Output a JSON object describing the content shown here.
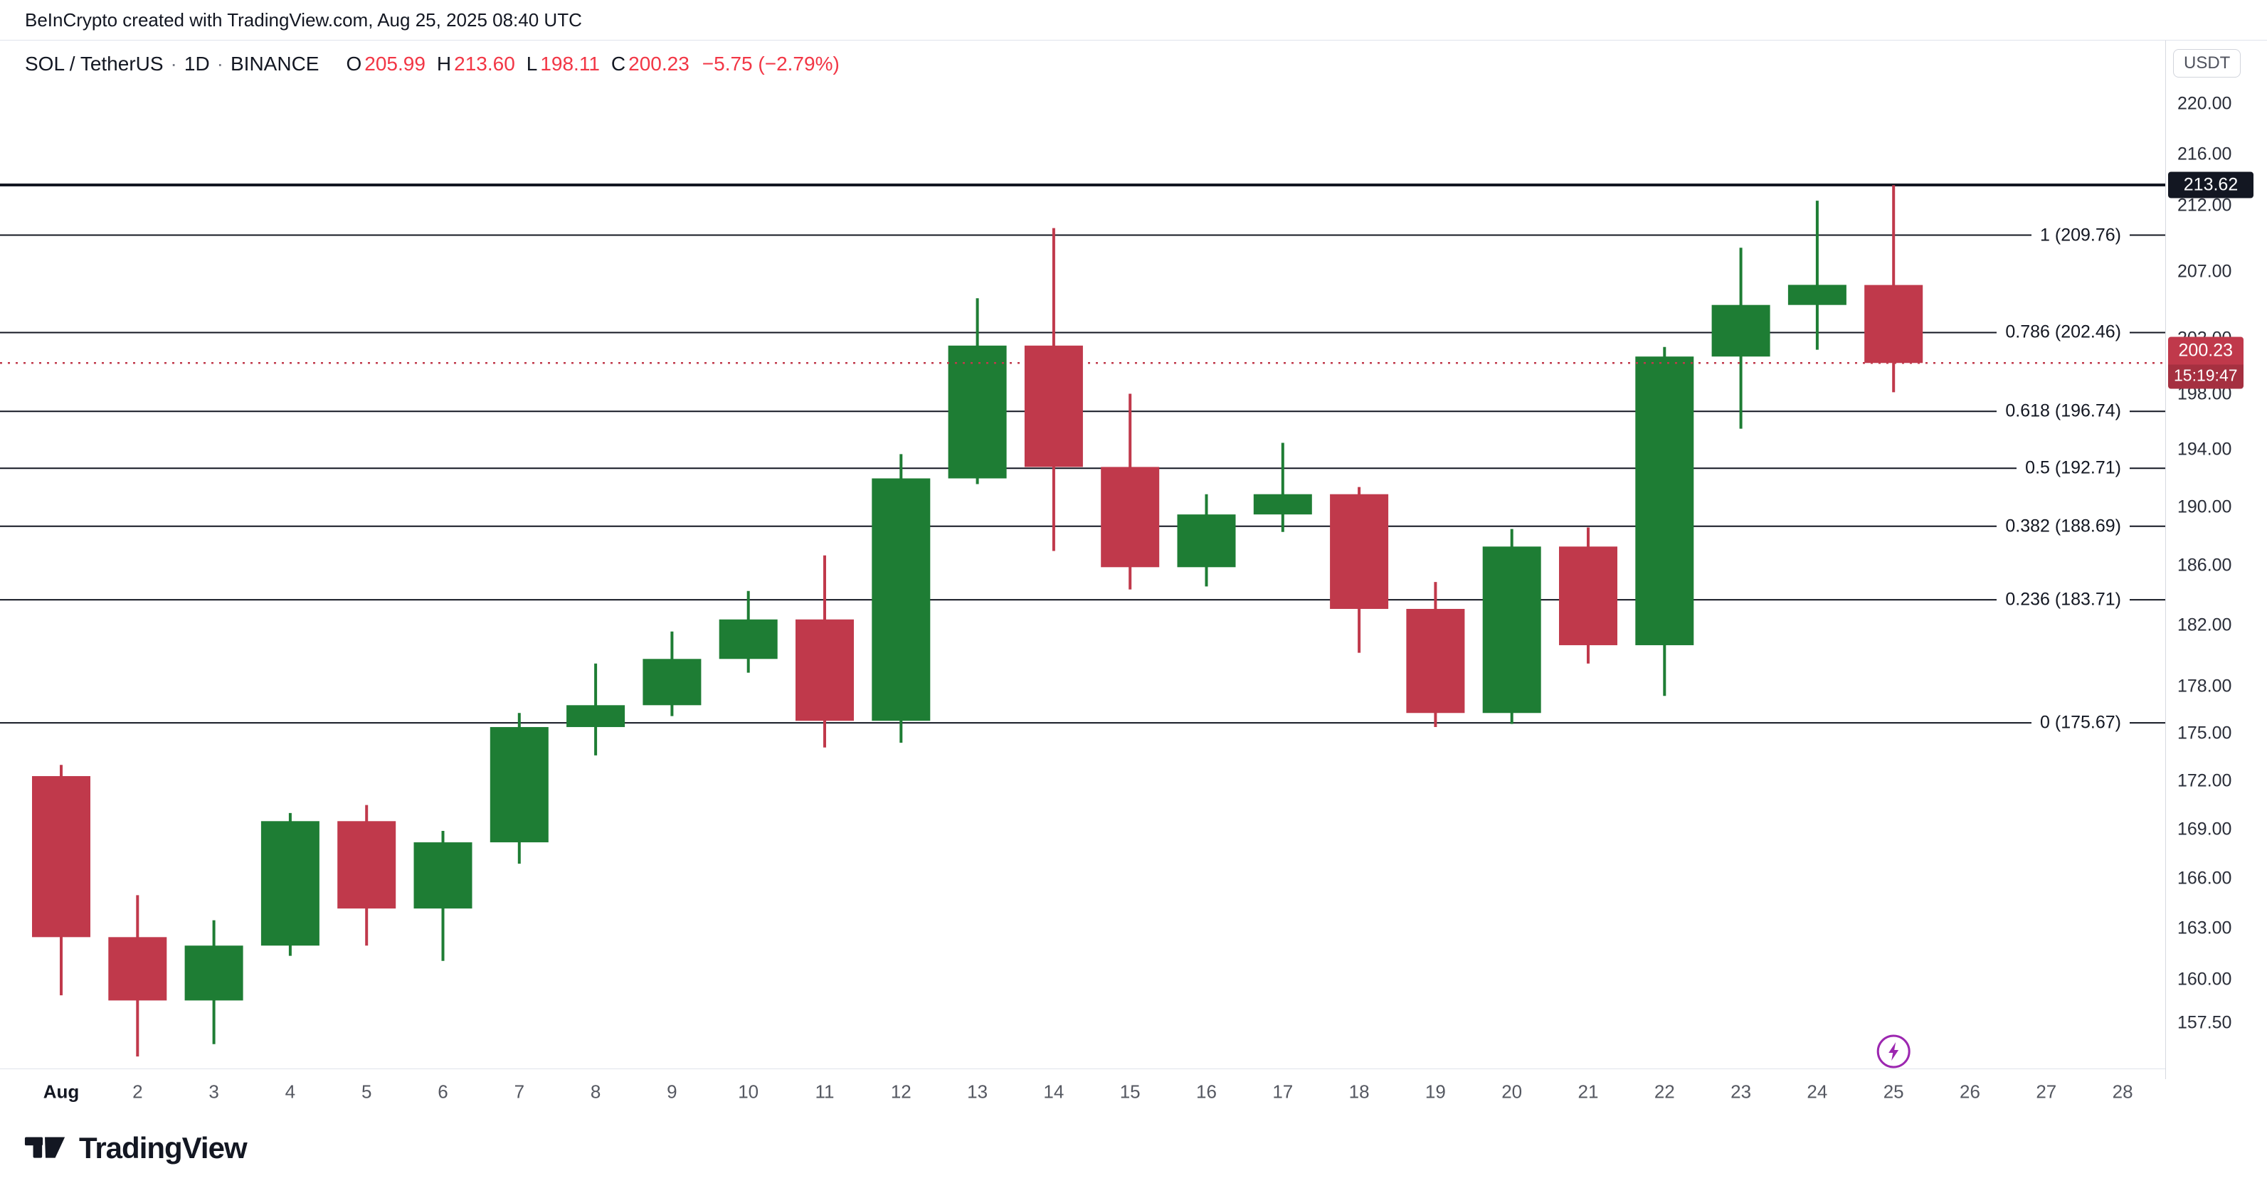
{
  "header": {
    "title": "BeInCrypto created with TradingView.com, Aug 25, 2025 08:40 UTC"
  },
  "legend": {
    "symbol": "SOL / TetherUS",
    "separator": "·",
    "interval": "1D",
    "exchange": "BINANCE",
    "ohlc": {
      "o_label": "O",
      "o_value": "205.99",
      "h_label": "H",
      "h_value": "213.60",
      "l_label": "L",
      "l_value": "198.11",
      "c_label": "C",
      "c_value": "200.23",
      "change": "−5.75 (−2.79%)"
    }
  },
  "price_axis": {
    "currency_button": "USDT",
    "ticks": [
      {
        "label": "220.00",
        "value": 220
      },
      {
        "label": "216.00",
        "value": 216
      },
      {
        "label": "212.00",
        "value": 212
      },
      {
        "label": "207.00",
        "value": 207
      },
      {
        "label": "202.00",
        "value": 202
      },
      {
        "label": "198.00",
        "value": 198
      },
      {
        "label": "194.00",
        "value": 194
      },
      {
        "label": "190.00",
        "value": 190
      },
      {
        "label": "186.00",
        "value": 186
      },
      {
        "label": "182.00",
        "value": 182
      },
      {
        "label": "178.00",
        "value": 178
      },
      {
        "label": "175.00",
        "value": 175
      },
      {
        "label": "172.00",
        "value": 172
      },
      {
        "label": "169.00",
        "value": 169
      },
      {
        "label": "166.00",
        "value": 166
      },
      {
        "label": "163.00",
        "value": 163
      },
      {
        "label": "160.00",
        "value": 160
      },
      {
        "label": "157.50",
        "value": 157.5
      }
    ],
    "price_line_tag": {
      "label": "213.62",
      "value": 213.62
    },
    "last_price_tag": {
      "price": "200.23",
      "countdown": "15:19:47",
      "value": 200.23
    }
  },
  "footer": {
    "brand": "TradingView"
  },
  "chart_data": {
    "type": "candlestick",
    "title": "SOL / TetherUS · 1D · BINANCE",
    "symbol": "SOL/USDT",
    "exchange": "BINANCE",
    "interval": "1D",
    "price_scale": "log",
    "grid": false,
    "y_domain": [
      155.0,
      221.5
    ],
    "x_labels": [
      "Aug",
      "2",
      "3",
      "4",
      "5",
      "6",
      "7",
      "8",
      "9",
      "10",
      "11",
      "12",
      "13",
      "14",
      "15",
      "16",
      "17",
      "18",
      "19",
      "20",
      "21",
      "22",
      "23",
      "24",
      "25",
      "26",
      "27",
      "28"
    ],
    "candles": [
      {
        "day": "Aug 1",
        "o": 172.3,
        "h": 173.0,
        "l": 159.1,
        "c": 162.5
      },
      {
        "day": "Aug 2",
        "o": 162.5,
        "h": 165.0,
        "l": 155.6,
        "c": 158.8
      },
      {
        "day": "Aug 3",
        "o": 158.8,
        "h": 163.5,
        "l": 156.3,
        "c": 162.0
      },
      {
        "day": "Aug 4",
        "o": 162.0,
        "h": 170.0,
        "l": 161.4,
        "c": 169.5
      },
      {
        "day": "Aug 5",
        "o": 169.5,
        "h": 170.5,
        "l": 162.0,
        "c": 164.2
      },
      {
        "day": "Aug 6",
        "o": 164.2,
        "h": 168.9,
        "l": 161.1,
        "c": 168.2
      },
      {
        "day": "Aug 7",
        "o": 168.2,
        "h": 176.3,
        "l": 166.9,
        "c": 175.4
      },
      {
        "day": "Aug 8",
        "o": 175.4,
        "h": 179.5,
        "l": 173.6,
        "c": 176.8
      },
      {
        "day": "Aug 9",
        "o": 176.8,
        "h": 181.6,
        "l": 176.1,
        "c": 179.8
      },
      {
        "day": "Aug 10",
        "o": 179.8,
        "h": 184.3,
        "l": 178.9,
        "c": 182.4
      },
      {
        "day": "Aug 11",
        "o": 182.4,
        "h": 186.7,
        "l": 174.1,
        "c": 175.8
      },
      {
        "day": "Aug 12",
        "o": 175.8,
        "h": 193.7,
        "l": 174.4,
        "c": 192.0
      },
      {
        "day": "Aug 13",
        "o": 192.0,
        "h": 205.0,
        "l": 191.6,
        "c": 201.5
      },
      {
        "day": "Aug 14",
        "o": 201.5,
        "h": 210.3,
        "l": 187.0,
        "c": 192.8
      },
      {
        "day": "Aug 15",
        "o": 192.8,
        "h": 198.0,
        "l": 184.4,
        "c": 185.9
      },
      {
        "day": "Aug 16",
        "o": 185.9,
        "h": 190.9,
        "l": 184.6,
        "c": 189.5
      },
      {
        "day": "Aug 17",
        "o": 189.5,
        "h": 194.5,
        "l": 188.3,
        "c": 190.9
      },
      {
        "day": "Aug 18",
        "o": 190.9,
        "h": 191.4,
        "l": 180.2,
        "c": 183.1
      },
      {
        "day": "Aug 19",
        "o": 183.1,
        "h": 184.9,
        "l": 175.4,
        "c": 176.3
      },
      {
        "day": "Aug 20",
        "o": 176.3,
        "h": 188.5,
        "l": 175.6,
        "c": 187.3
      },
      {
        "day": "Aug 21",
        "o": 187.3,
        "h": 188.6,
        "l": 179.5,
        "c": 180.7
      },
      {
        "day": "Aug 22",
        "o": 180.7,
        "h": 201.4,
        "l": 177.4,
        "c": 200.7
      },
      {
        "day": "Aug 23",
        "o": 200.7,
        "h": 208.8,
        "l": 195.5,
        "c": 204.5
      },
      {
        "day": "Aug 24",
        "o": 204.5,
        "h": 212.4,
        "l": 201.2,
        "c": 206.0
      },
      {
        "day": "Aug 25",
        "o": 205.99,
        "h": 213.6,
        "l": 198.11,
        "c": 200.23
      }
    ],
    "fib_levels": [
      {
        "label": "1 (209.76)",
        "value": 209.76
      },
      {
        "label": "0.786 (202.46)",
        "value": 202.46
      },
      {
        "label": "0.618 (196.74)",
        "value": 196.74
      },
      {
        "label": "0.5 (192.71)",
        "value": 192.71
      },
      {
        "label": "0.382 (188.69)",
        "value": 188.69
      },
      {
        "label": "0.236 (183.71)",
        "value": 183.71
      },
      {
        "label": "0 (175.67)",
        "value": 175.67
      }
    ],
    "horizontal_line": {
      "value": 213.62,
      "label": "213.62"
    },
    "last_price_line": {
      "value": 200.23,
      "style": "dotted"
    },
    "realtime_marker_day": "25",
    "colors": {
      "up": "#1e7d34",
      "down": "#c0394b",
      "legend_values": "#f23645",
      "fib_line": "#131722",
      "horizontal_line": "#131722",
      "last_price_line": "#c0394b",
      "price_tag_bg": "#131722",
      "last_price_tag_bg": "#c0394b",
      "lightning": "#9c27b0"
    }
  }
}
